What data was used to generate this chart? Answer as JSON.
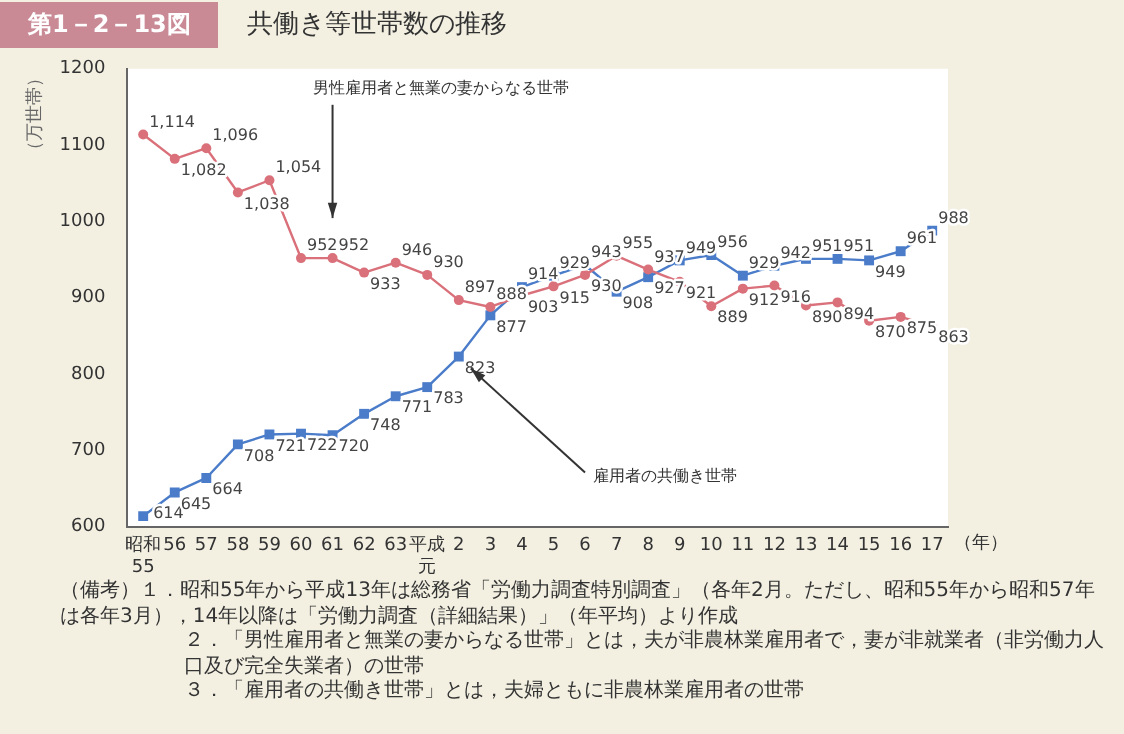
{
  "chart_data": {
    "type": "line",
    "title": "共働き等世帯数の推移",
    "ylabel": "（万世帯）",
    "xlabel": "（年）",
    "categories": [
      "昭和55",
      "56",
      "57",
      "58",
      "59",
      "60",
      "61",
      "62",
      "63",
      "平成元",
      "2",
      "3",
      "4",
      "5",
      "6",
      "7",
      "8",
      "9",
      "10",
      "11",
      "12",
      "13",
      "14",
      "15",
      "16",
      "17"
    ],
    "series": [
      {
        "name": "男性雇用者と無業の妻からなる世帯",
        "color": "#d9707a",
        "marker": "circle",
        "values": [
          1114,
          1082,
          1096,
          1038,
          1054,
          952,
          952,
          933,
          946,
          930,
          897,
          888,
          903,
          915,
          930,
          955,
          937,
          921,
          889,
          912,
          916,
          890,
          894,
          870,
          875,
          863
        ],
        "value_labels": [
          "1,114",
          "1,082",
          "1,096",
          "1,038",
          "1,054",
          "952",
          "952",
          "933",
          "946",
          "930",
          "897",
          "888",
          "903",
          "915",
          "930",
          "955",
          "937",
          "921",
          "889",
          "912",
          "916",
          "890",
          "894",
          "870",
          "875",
          "863"
        ]
      },
      {
        "name": "雇用者の共働き世帯",
        "color": "#4a7cc9",
        "marker": "square",
        "values": [
          614,
          645,
          664,
          708,
          721,
          722,
          720,
          748,
          771,
          783,
          823,
          877,
          914,
          929,
          943,
          908,
          927,
          949,
          956,
          929,
          942,
          951,
          951,
          949,
          961,
          988
        ],
        "value_labels": [
          "614",
          "645",
          "664",
          "708",
          "721",
          "722",
          "720",
          "748",
          "771",
          "783",
          "823",
          "877",
          "914",
          "929",
          "943",
          "908",
          "927",
          "949",
          "956",
          "929",
          "942",
          "951",
          "951",
          "949",
          "961",
          "988"
        ]
      }
    ],
    "ylim": [
      600,
      1200
    ],
    "yticks": [
      600,
      700,
      800,
      900,
      1000,
      1100,
      1200
    ],
    "grid": false,
    "legend": false,
    "annotations": [
      "第1－2－13図",
      "（備考）１．昭和55年から平成13年は総務省「労働力調査特別調査」（各年2月。ただし、昭和55年から昭和57年は各年3月），14年以降は「労働力調査（詳細結果）」（年平均）より作成",
      "２．「男性雇用者と無業の妻からなる世帯」とは，夫が非農林業雇用者で，妻が非就業者（非労働力人口及び完全失業者）の世帯",
      "３．「雇用者の共働き世帯」とは，夫婦ともに非農林業雇用者の世帯"
    ]
  }
}
